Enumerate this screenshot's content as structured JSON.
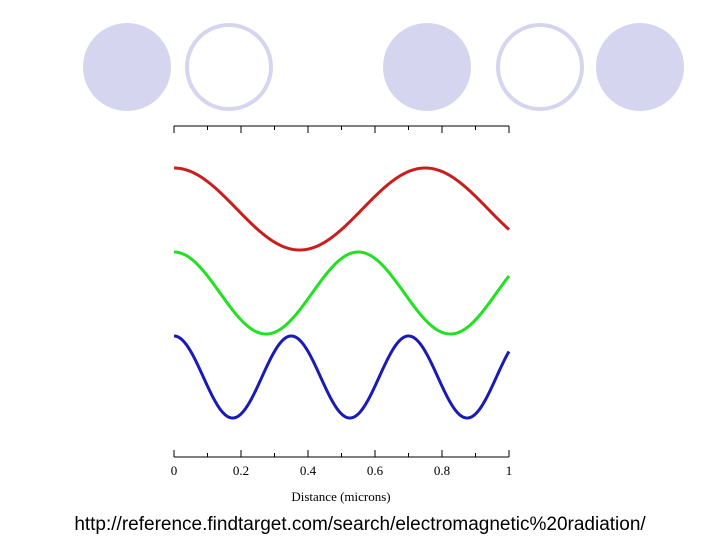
{
  "decor": {
    "circles": [
      {
        "style": "filled",
        "color": "#d5d5ef"
      },
      {
        "style": "ring",
        "color": "#d5d5ef"
      },
      {
        "style": "filled",
        "color": "#d5d5ef"
      },
      {
        "style": "ring",
        "color": "#d5d5ef"
      },
      {
        "style": "filled",
        "color": "#d5d5ef"
      }
    ]
  },
  "chart_data": {
    "type": "line",
    "xlabel": "Distance (microns)",
    "ylabel": "",
    "xlim": [
      0,
      1
    ],
    "xticks": [
      0,
      0.2,
      0.4,
      0.6,
      0.8,
      1
    ],
    "xtick_labels": [
      "0",
      "0.2",
      "0.4",
      "0.6",
      "0.8",
      "1"
    ],
    "grid": false,
    "series": [
      {
        "color": "#c81e1e",
        "wavelength": 0.75,
        "amplitude": 1,
        "phase_start": "max"
      },
      {
        "color": "#22e022",
        "wavelength": 0.55,
        "amplitude": 1,
        "phase_start": "max"
      },
      {
        "color": "#1a1ab4",
        "wavelength": 0.35,
        "amplitude": 1,
        "phase_start": "max"
      }
    ]
  },
  "caption": "http://reference.findtarget.com/search/electromagnetic%20radiation/"
}
